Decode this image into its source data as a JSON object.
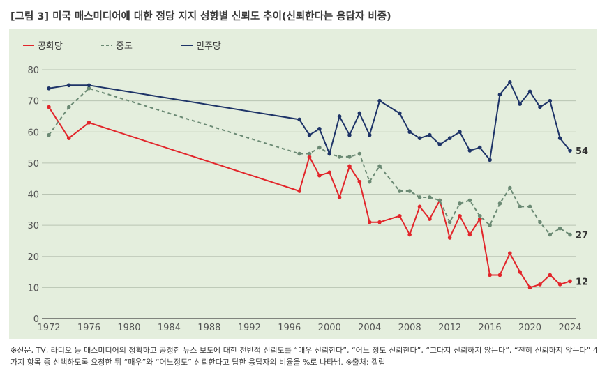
{
  "title": "[그림 3] 미국 매스미디어에 대한 정당 지지 성향별 신뢰도 추이(신뢰한다는 응답자 비중)",
  "note": "※신문, TV, 라디오 등 매스미디어의 정확하고 공정한 뉴스 보도에 대한 전반적 신뢰도를 “매우 신뢰한다”, “어느 정도 신뢰한다”, “그다지 신뢰하지 않는다”, “전혀 신뢰하지 않는다” 4가지 항목 중 선택하도록 요청한 뒤 “매우”와 “어느정도” 신뢰한다고 답한 응답자의 비율을 %로 나타냄. ※출처: 갤럽",
  "chart_data": {
    "type": "line",
    "title": "",
    "xlabel": "",
    "ylabel": "",
    "xlim": [
      1972,
      2024
    ],
    "ylim": [
      0,
      80
    ],
    "x_ticks": [
      1972,
      1976,
      1980,
      1984,
      1988,
      1992,
      1996,
      2000,
      2004,
      2008,
      2012,
      2016,
      2020,
      2024
    ],
    "y_ticks": [
      0,
      10,
      20,
      30,
      40,
      50,
      60,
      70,
      80
    ],
    "grid": "horizontal",
    "legend_position": "top-left",
    "series": [
      {
        "name": "공화당",
        "color": "#e2262b",
        "style": "solid",
        "end_label": "12",
        "x": [
          1972,
          1974,
          1976,
          1997,
          1998,
          1999,
          2000,
          2001,
          2002,
          2003,
          2004,
          2005,
          2007,
          2008,
          2009,
          2010,
          2011,
          2012,
          2013,
          2014,
          2015,
          2016,
          2017,
          2018,
          2019,
          2020,
          2021,
          2022,
          2023,
          2024
        ],
        "y": [
          68,
          58,
          63,
          41,
          52,
          46,
          47,
          39,
          49,
          44,
          31,
          31,
          33,
          27,
          36,
          32,
          38,
          26,
          33,
          27,
          32,
          14,
          14,
          21,
          15,
          10,
          11,
          14,
          11,
          12
        ]
      },
      {
        "name": "중도",
        "color": "#6b8a74",
        "style": "dashed",
        "end_label": "27",
        "x": [
          1972,
          1974,
          1976,
          1997,
          1998,
          1999,
          2000,
          2001,
          2002,
          2003,
          2004,
          2005,
          2007,
          2008,
          2009,
          2010,
          2011,
          2012,
          2013,
          2014,
          2015,
          2016,
          2017,
          2018,
          2019,
          2020,
          2021,
          2022,
          2023,
          2024
        ],
        "y": [
          59,
          68,
          74,
          53,
          53,
          55,
          53,
          52,
          52,
          53,
          44,
          49,
          41,
          41,
          39,
          39,
          38,
          31,
          37,
          38,
          33,
          30,
          37,
          42,
          36,
          36,
          31,
          27,
          29,
          27
        ]
      },
      {
        "name": "민주당",
        "color": "#1e3468",
        "style": "solid",
        "end_label": "54",
        "x": [
          1972,
          1974,
          1976,
          1997,
          1998,
          1999,
          2000,
          2001,
          2002,
          2003,
          2004,
          2005,
          2007,
          2008,
          2009,
          2010,
          2011,
          2012,
          2013,
          2014,
          2015,
          2016,
          2017,
          2018,
          2019,
          2020,
          2021,
          2022,
          2023,
          2024
        ],
        "y": [
          74,
          75,
          75,
          64,
          59,
          61,
          53,
          65,
          59,
          66,
          59,
          70,
          66,
          60,
          58,
          59,
          56,
          58,
          60,
          54,
          55,
          51,
          72,
          76,
          69,
          73,
          68,
          70,
          58,
          54
        ]
      }
    ]
  }
}
